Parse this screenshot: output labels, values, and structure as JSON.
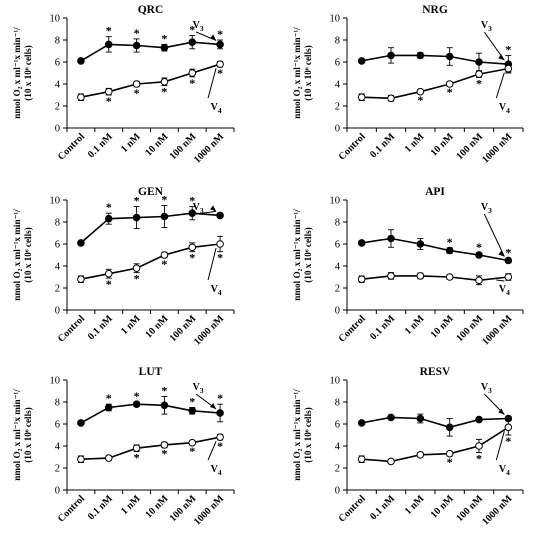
{
  "figure": {
    "ylabel_line1": "nmol O₂ x ml⁻¹x min⁻¹/",
    "ylabel_line2": "(10 x 10⁶ cells)",
    "v3_label": "V",
    "v3_sub": "3",
    "v4_label": "V",
    "v4_sub": "4",
    "star_glyph": "*"
  },
  "chart_data": [
    {
      "type": "line",
      "title": "QRC",
      "categories": [
        "Control",
        "0.1 nM",
        "1 nM",
        "10 nM",
        "100 nM",
        "1000 nM"
      ],
      "ylim": [
        0,
        10
      ],
      "yticks": [
        0,
        2,
        4,
        6,
        8,
        10
      ],
      "grid": false,
      "series": [
        {
          "name": "V3",
          "marker": "filled",
          "values": [
            6.1,
            7.6,
            7.5,
            7.3,
            7.8,
            7.6
          ],
          "errors": [
            0.15,
            0.7,
            0.6,
            0.3,
            0.6,
            0.4
          ],
          "significant": [
            false,
            true,
            true,
            true,
            true,
            true
          ]
        },
        {
          "name": "V4",
          "marker": "open",
          "values": [
            2.8,
            3.3,
            4.0,
            4.2,
            5.0,
            5.8
          ],
          "errors": [
            0.3,
            0.3,
            0.25,
            0.35,
            0.35,
            0.25
          ],
          "significant": [
            false,
            true,
            true,
            true,
            true,
            true
          ]
        }
      ]
    },
    {
      "type": "line",
      "title": "NRG",
      "categories": [
        "Control",
        "0.1 nM",
        "1 nM",
        "10 nM",
        "100 nM",
        "1000 nM"
      ],
      "ylim": [
        0,
        10
      ],
      "yticks": [
        0,
        2,
        4,
        6,
        8,
        10
      ],
      "grid": false,
      "series": [
        {
          "name": "V3",
          "marker": "filled",
          "values": [
            6.1,
            6.6,
            6.6,
            6.5,
            6.0,
            5.8
          ],
          "errors": [
            0.15,
            0.7,
            0.25,
            0.8,
            0.8,
            0.8
          ],
          "significant": [
            false,
            false,
            false,
            false,
            false,
            true
          ]
        },
        {
          "name": "V4",
          "marker": "open",
          "values": [
            2.8,
            2.7,
            3.3,
            4.0,
            4.9,
            5.4
          ],
          "errors": [
            0.3,
            0.25,
            0.2,
            0.2,
            0.3,
            0.3
          ],
          "significant": [
            false,
            false,
            true,
            true,
            true,
            false
          ]
        }
      ]
    },
    {
      "type": "line",
      "title": "GEN",
      "categories": [
        "Control",
        "0.1 nM",
        "1 nM",
        "10 nM",
        "100 nM",
        "1000 nM"
      ],
      "ylim": [
        0,
        10
      ],
      "yticks": [
        0,
        2,
        4,
        6,
        8,
        10
      ],
      "grid": false,
      "series": [
        {
          "name": "V3",
          "marker": "filled",
          "values": [
            6.1,
            8.3,
            8.4,
            8.5,
            8.8,
            8.6
          ],
          "errors": [
            0.15,
            0.5,
            1.0,
            1.0,
            0.6,
            0.2
          ],
          "significant": [
            false,
            true,
            true,
            true,
            true,
            false
          ]
        },
        {
          "name": "V4",
          "marker": "open",
          "values": [
            2.8,
            3.3,
            3.8,
            5.0,
            5.7,
            6.0
          ],
          "errors": [
            0.3,
            0.4,
            0.4,
            0.25,
            0.4,
            0.7
          ],
          "significant": [
            false,
            true,
            true,
            true,
            true,
            true
          ]
        }
      ]
    },
    {
      "type": "line",
      "title": "API",
      "categories": [
        "Control",
        "0.1 nM",
        "1 nM",
        "10 nM",
        "100 nM",
        "1000 nM"
      ],
      "ylim": [
        0,
        10
      ],
      "yticks": [
        0,
        2,
        4,
        6,
        8,
        10
      ],
      "grid": false,
      "series": [
        {
          "name": "V3",
          "marker": "filled",
          "values": [
            6.1,
            6.5,
            6.0,
            5.4,
            5.0,
            4.5
          ],
          "errors": [
            0.15,
            0.8,
            0.5,
            0.25,
            0.2,
            0.2
          ],
          "significant": [
            false,
            false,
            false,
            true,
            true,
            true
          ]
        },
        {
          "name": "V4",
          "marker": "open",
          "values": [
            2.8,
            3.1,
            3.1,
            3.0,
            2.7,
            3.0
          ],
          "errors": [
            0.3,
            0.3,
            0.25,
            0.2,
            0.4,
            0.3
          ],
          "significant": [
            false,
            false,
            false,
            false,
            false,
            false
          ]
        }
      ]
    },
    {
      "type": "line",
      "title": "LUT",
      "categories": [
        "Control",
        "0.1 nM",
        "1 nM",
        "10 nM",
        "100 nM",
        "1000 nM"
      ],
      "ylim": [
        0,
        10
      ],
      "yticks": [
        0,
        2,
        4,
        6,
        8,
        10
      ],
      "grid": false,
      "series": [
        {
          "name": "V3",
          "marker": "filled",
          "values": [
            6.1,
            7.5,
            7.8,
            7.7,
            7.2,
            7.0
          ],
          "errors": [
            0.15,
            0.3,
            0.2,
            0.8,
            0.3,
            0.8
          ],
          "significant": [
            false,
            true,
            true,
            true,
            true,
            true
          ]
        },
        {
          "name": "V4",
          "marker": "open",
          "values": [
            2.8,
            2.9,
            3.8,
            4.1,
            4.3,
            4.8
          ],
          "errors": [
            0.3,
            0.2,
            0.3,
            0.25,
            0.2,
            0.25
          ],
          "significant": [
            false,
            false,
            true,
            true,
            true,
            true
          ]
        }
      ]
    },
    {
      "type": "line",
      "title": "RESV",
      "categories": [
        "Control",
        "0.1 nM",
        "1 nM",
        "10 nM",
        "100 nM",
        "1000 nM"
      ],
      "ylim": [
        0,
        10
      ],
      "yticks": [
        0,
        2,
        4,
        6,
        8,
        10
      ],
      "grid": false,
      "series": [
        {
          "name": "V3",
          "marker": "filled",
          "values": [
            6.1,
            6.6,
            6.5,
            5.7,
            6.4,
            6.5
          ],
          "errors": [
            0.15,
            0.2,
            0.4,
            0.8,
            0.2,
            0.2
          ],
          "significant": [
            false,
            false,
            false,
            false,
            false,
            false
          ]
        },
        {
          "name": "V4",
          "marker": "open",
          "values": [
            2.8,
            2.6,
            3.2,
            3.3,
            4.0,
            5.7
          ],
          "errors": [
            0.3,
            0.2,
            0.2,
            0.2,
            0.6,
            0.7
          ],
          "significant": [
            false,
            false,
            false,
            true,
            true,
            true
          ]
        }
      ]
    }
  ]
}
